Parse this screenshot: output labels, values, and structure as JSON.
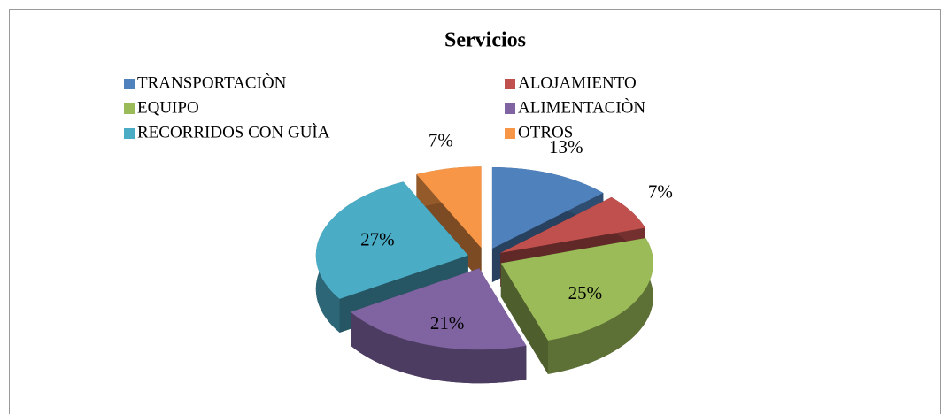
{
  "chart_data": {
    "type": "pie",
    "title": "Servicios",
    "categories": [
      "TRANSPORTACIÒN",
      "ALOJAMIENTO",
      "EQUIPO",
      "ALIMENTACIÒN",
      "RECORRIDOS CON GUÌA",
      "OTROS"
    ],
    "values": [
      13,
      7,
      25,
      21,
      27,
      7
    ],
    "value_labels": [
      "13%",
      "7%",
      "25%",
      "21%",
      "27%",
      "7%"
    ],
    "colors": [
      "#4F81BD",
      "#C0504D",
      "#9BBB59",
      "#8064A2",
      "#4BACC6",
      "#F79646"
    ]
  }
}
